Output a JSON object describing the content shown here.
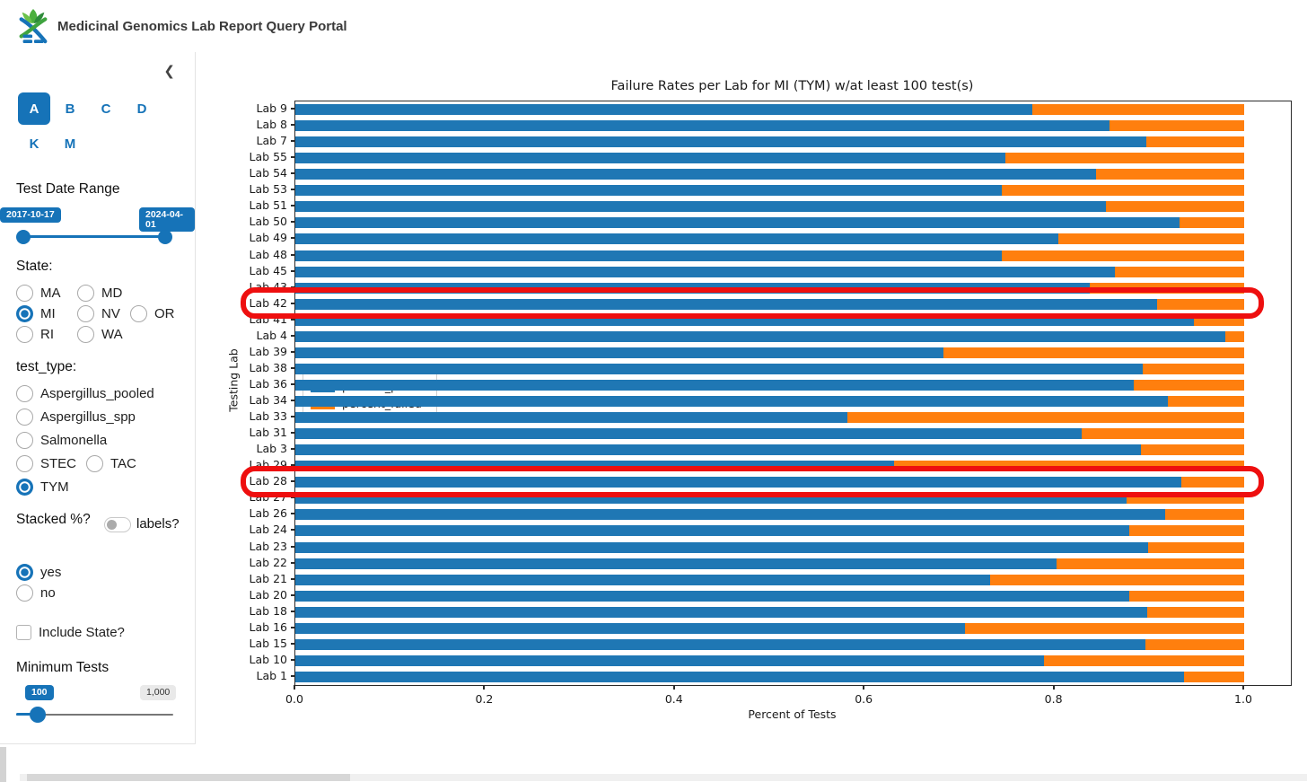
{
  "header": {
    "title": "Medicinal Genomics Lab Report Query Portal"
  },
  "sidebar": {
    "collapse_icon": "❮",
    "tab_rows": [
      [
        {
          "label": "A",
          "selected": true
        },
        {
          "label": "B",
          "selected": false
        },
        {
          "label": "C",
          "selected": false
        },
        {
          "label": "D",
          "selected": false
        }
      ],
      [
        {
          "label": "K",
          "selected": false
        },
        {
          "label": "M",
          "selected": false
        }
      ]
    ],
    "date_range": {
      "label": "Test Date Range",
      "start": "2017-10-17",
      "end": "2024-04-01"
    },
    "state": {
      "label": "State:",
      "rows": [
        [
          {
            "label": "MA",
            "selected": false
          },
          {
            "label": "MD",
            "selected": false
          }
        ],
        [
          {
            "label": "MI",
            "selected": true
          },
          {
            "label": "NV",
            "selected": false
          },
          {
            "label": "OR",
            "selected": false
          }
        ],
        [
          {
            "label": "RI",
            "selected": false
          },
          {
            "label": "WA",
            "selected": false
          }
        ]
      ]
    },
    "test_type": {
      "label": "test_type:",
      "rows": [
        [
          {
            "label": "Aspergillus_pooled",
            "selected": false
          }
        ],
        [
          {
            "label": "Aspergillus_spp",
            "selected": false
          }
        ],
        [
          {
            "label": "Salmonella",
            "selected": false
          }
        ],
        [
          {
            "label": "STEC",
            "selected": false
          },
          {
            "label": "TAC",
            "selected": false
          }
        ],
        [
          {
            "label": "TYM",
            "selected": true
          }
        ]
      ]
    },
    "stacked": {
      "label": "Stacked %?",
      "toggle_label": "labels?",
      "toggle_on": false,
      "rows": [
        [
          {
            "label": "yes",
            "selected": true
          }
        ],
        [
          {
            "label": "no",
            "selected": false
          }
        ]
      ]
    },
    "include_state": {
      "label": "Include State?",
      "checked": false
    },
    "minimum_tests": {
      "label": "Minimum Tests",
      "value": "100",
      "max": "1,000"
    }
  },
  "chart_data": {
    "type": "bar",
    "orientation": "horizontal",
    "stacked": true,
    "title": "Failure Rates per Lab for MI (TYM) w/at least 100 test(s)",
    "xlabel": "Percent of Tests",
    "ylabel": "Testing Lab",
    "xlim": [
      0.0,
      1.0
    ],
    "xticks": [
      0.0,
      0.2,
      0.4,
      0.6,
      0.8,
      1.0
    ],
    "grid": false,
    "legend_position": "center-left",
    "categories": [
      "Lab 9",
      "Lab 8",
      "Lab 7",
      "Lab 55",
      "Lab 54",
      "Lab 53",
      "Lab 51",
      "Lab 50",
      "Lab 49",
      "Lab 48",
      "Lab 45",
      "Lab 43",
      "Lab 42",
      "Lab 41",
      "Lab 4",
      "Lab 39",
      "Lab 38",
      "Lab 36",
      "Lab 34",
      "Lab 33",
      "Lab 31",
      "Lab 3",
      "Lab 29",
      "Lab 28",
      "Lab 27",
      "Lab 26",
      "Lab 24",
      "Lab 23",
      "Lab 22",
      "Lab 21",
      "Lab 20",
      "Lab 18",
      "Lab 16",
      "Lab 15",
      "Lab 10",
      "Lab 1"
    ],
    "series": [
      {
        "name": "percent_passed",
        "color": "#1f77b4",
        "values": [
          0.777,
          0.858,
          0.897,
          0.748,
          0.844,
          0.745,
          0.854,
          0.932,
          0.804,
          0.745,
          0.864,
          0.837,
          0.908,
          0.947,
          0.98,
          0.683,
          0.893,
          0.884,
          0.92,
          0.582,
          0.829,
          0.891,
          0.631,
          0.934,
          0.876,
          0.917,
          0.879,
          0.899,
          0.802,
          0.732,
          0.879,
          0.898,
          0.706,
          0.896,
          0.789,
          0.937
        ]
      },
      {
        "name": "percent_failed",
        "color": "#ff7f0e",
        "values": [
          0.223,
          0.142,
          0.103,
          0.252,
          0.156,
          0.255,
          0.146,
          0.068,
          0.196,
          0.255,
          0.136,
          0.163,
          0.092,
          0.053,
          0.02,
          0.317,
          0.107,
          0.116,
          0.08,
          0.418,
          0.171,
          0.109,
          0.369,
          0.066,
          0.124,
          0.083,
          0.121,
          0.101,
          0.198,
          0.268,
          0.121,
          0.102,
          0.294,
          0.104,
          0.211,
          0.063
        ]
      }
    ],
    "annotations": [
      {
        "type": "red-highlight-box",
        "category": "Lab 42"
      },
      {
        "type": "red-highlight-box",
        "category": "Lab 28"
      }
    ]
  }
}
